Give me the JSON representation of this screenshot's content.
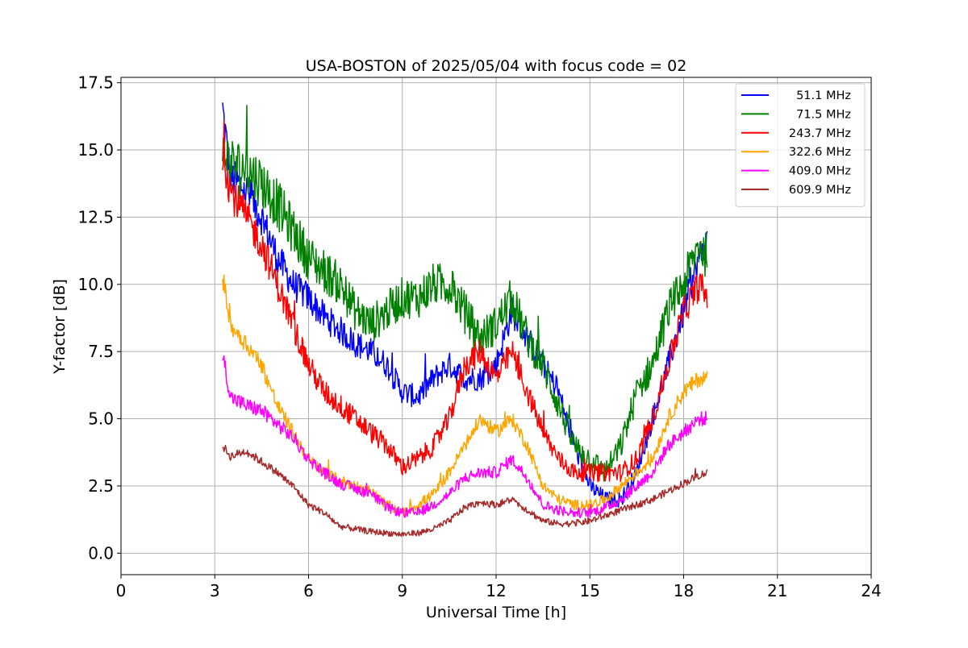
{
  "chart_data": {
    "type": "line",
    "title": "USA-BOSTON of 2025/05/04 with focus code = 02",
    "xlabel": "Universal Time [h]",
    "ylabel": "Y-factor [dB]",
    "xlim": [
      0,
      24
    ],
    "ylim": [
      -0.8,
      17.7
    ],
    "x_ticks": [
      0,
      3,
      6,
      9,
      12,
      15,
      18,
      21,
      24
    ],
    "x_tick_labels": [
      "0",
      "3",
      "6",
      "9",
      "12",
      "15",
      "18",
      "21",
      "24"
    ],
    "y_ticks": [
      0,
      2.5,
      5,
      7.5,
      10,
      12.5,
      15,
      17.5
    ],
    "y_tick_labels": [
      "0.0",
      "2.5",
      "5.0",
      "7.5",
      "10.0",
      "12.5",
      "15.0",
      "17.5"
    ],
    "grid": true,
    "legend_position": "top-right",
    "series": [
      {
        "name": "51.1 MHz",
        "color": "#0000ff",
        "x": [
          3.25,
          3.5,
          4,
          4.5,
          5,
          5.5,
          6,
          6.5,
          7,
          7.5,
          8,
          8.5,
          9,
          9.5,
          10,
          10.5,
          11,
          11.5,
          12,
          12.5,
          13,
          13.5,
          14,
          14.5,
          15,
          15.5,
          16,
          16.5,
          17,
          17.5,
          18,
          18.5,
          18.75
        ],
        "y": [
          16.5,
          14.0,
          13.5,
          12.5,
          11.0,
          10.0,
          9.5,
          8.8,
          8.3,
          7.8,
          7.5,
          7.0,
          6.0,
          5.8,
          6.5,
          7.0,
          6.5,
          6.5,
          7.0,
          9.0,
          8.0,
          7.0,
          6.0,
          4.0,
          2.5,
          2.0,
          2.0,
          3.0,
          5.0,
          7.0,
          9.0,
          11.0,
          11.5
        ]
      },
      {
        "name": "71.5 MHz",
        "color": "#008000",
        "x": [
          3.25,
          3.5,
          4,
          4.5,
          5,
          5.5,
          6,
          6.5,
          7,
          7.5,
          8,
          8.5,
          9,
          9.5,
          10,
          10.5,
          11,
          11.5,
          12,
          12.5,
          13,
          13.5,
          14,
          14.5,
          15,
          15.5,
          16,
          16.5,
          17,
          17.5,
          18,
          18.5,
          18.75
        ],
        "y": [
          15.0,
          14.5,
          14.3,
          13.8,
          13.0,
          12.0,
          11.0,
          10.5,
          10.0,
          9.0,
          8.5,
          9.0,
          9.5,
          9.5,
          10.0,
          10.0,
          9.0,
          8.0,
          8.5,
          9.5,
          8.0,
          7.0,
          5.5,
          4.0,
          3.5,
          3.0,
          4.0,
          6.0,
          7.0,
          9.0,
          10.0,
          11.5,
          11.0
        ]
      },
      {
        "name": "243.7 MHz",
        "color": "#ff0000",
        "x": [
          3.25,
          3.5,
          4,
          4.5,
          5,
          5.5,
          6,
          6.5,
          7,
          7.5,
          8,
          8.5,
          9,
          9.5,
          10,
          10.5,
          11,
          11.5,
          12,
          12.5,
          13,
          13.5,
          14,
          14.5,
          15,
          15.5,
          16,
          16.5,
          17,
          17.5,
          18,
          18.5,
          18.75
        ],
        "y": [
          15.0,
          13.5,
          12.5,
          11.5,
          10.0,
          8.5,
          7.0,
          6.0,
          5.5,
          5.0,
          4.5,
          4.0,
          3.2,
          3.5,
          4.0,
          5.0,
          7.0,
          7.5,
          6.5,
          7.5,
          6.0,
          4.5,
          3.5,
          3.0,
          3.0,
          3.0,
          3.0,
          3.5,
          5.0,
          7.0,
          9.0,
          10.0,
          9.5
        ]
      },
      {
        "name": "322.6 MHz",
        "color": "#ffa500",
        "x": [
          3.25,
          3.5,
          4,
          4.5,
          5,
          5.5,
          6,
          6.5,
          7,
          7.5,
          8,
          8.5,
          9,
          9.5,
          10,
          10.5,
          11,
          11.5,
          12,
          12.5,
          13,
          13.5,
          14,
          14.5,
          15,
          15.5,
          16,
          16.5,
          17,
          17.5,
          18,
          18.5,
          18.75
        ],
        "y": [
          10.3,
          8.5,
          7.8,
          7.0,
          5.5,
          4.5,
          3.5,
          3.0,
          2.7,
          2.5,
          2.3,
          1.8,
          1.5,
          1.8,
          2.2,
          3.0,
          4.0,
          5.0,
          4.5,
          5.0,
          4.0,
          2.5,
          2.0,
          1.8,
          1.8,
          2.0,
          2.5,
          3.0,
          3.5,
          5.0,
          6.0,
          6.5,
          6.5
        ]
      },
      {
        "name": "409.0 MHz",
        "color": "#ff00ff",
        "x": [
          3.25,
          3.5,
          4,
          4.5,
          5,
          5.5,
          6,
          6.5,
          7,
          7.5,
          8,
          8.5,
          9,
          9.5,
          10,
          10.5,
          11,
          11.5,
          12,
          12.5,
          13,
          13.5,
          14,
          14.5,
          15,
          15.5,
          16,
          16.5,
          17,
          17.5,
          18,
          18.5,
          18.75
        ],
        "y": [
          7.5,
          5.8,
          5.5,
          5.3,
          4.8,
          4.3,
          3.5,
          3.0,
          2.6,
          2.4,
          2.2,
          1.7,
          1.5,
          1.5,
          1.8,
          2.2,
          2.8,
          3.0,
          3.0,
          3.5,
          2.8,
          1.8,
          1.6,
          1.5,
          1.5,
          1.7,
          2.0,
          2.5,
          3.0,
          4.0,
          4.5,
          5.0,
          5.0
        ]
      },
      {
        "name": "609.9 MHz",
        "color": "#a52a2a",
        "x": [
          3.25,
          3.5,
          4,
          4.5,
          5,
          5.5,
          6,
          6.5,
          7,
          7.5,
          8,
          8.5,
          9,
          9.5,
          10,
          10.5,
          11,
          11.5,
          12,
          12.5,
          13,
          13.5,
          14,
          14.5,
          15,
          15.5,
          16,
          16.5,
          17,
          17.5,
          18,
          18.5,
          18.75
        ],
        "y": [
          4.0,
          3.6,
          3.8,
          3.4,
          3.0,
          2.5,
          1.8,
          1.5,
          1.0,
          0.9,
          0.8,
          0.75,
          0.7,
          0.75,
          0.9,
          1.2,
          1.7,
          1.9,
          1.8,
          2.0,
          1.6,
          1.2,
          1.1,
          1.1,
          1.2,
          1.4,
          1.6,
          1.8,
          2.0,
          2.3,
          2.6,
          2.9,
          3.0
        ]
      }
    ]
  }
}
